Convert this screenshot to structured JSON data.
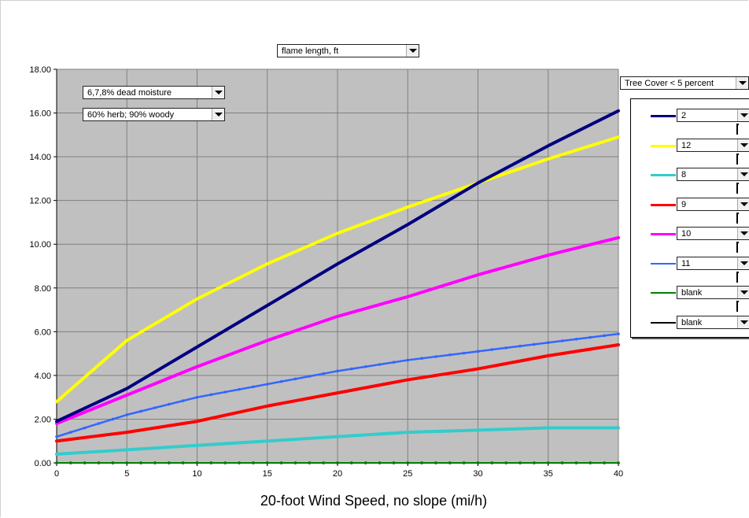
{
  "controls": {
    "output_select": "flame length, ft",
    "moisture_select": "6,7,8% dead moisture",
    "live_select": "60% herb; 90% woody",
    "cover_select": "Tree Cover < 5 percent"
  },
  "colors": {
    "plot_bg": "#c0c0c0",
    "grid": "#808080"
  },
  "chart_data": {
    "type": "line",
    "xlabel": "20-foot Wind Speed, no slope (mi/h)",
    "ylabel": "",
    "xlim": [
      0,
      40
    ],
    "ylim": [
      0,
      18
    ],
    "x_ticks": [
      "0",
      "5",
      "10",
      "15",
      "20",
      "25",
      "30",
      "35",
      "40"
    ],
    "y_ticks": [
      "0.00",
      "2.00",
      "4.00",
      "6.00",
      "8.00",
      "10.00",
      "12.00",
      "14.00",
      "16.00",
      "18.00"
    ],
    "grid": true,
    "legend_position": "right",
    "x": [
      0,
      5,
      10,
      15,
      20,
      25,
      30,
      35,
      40
    ],
    "series": [
      {
        "name": "2",
        "color": "#000080",
        "markers": false,
        "values": [
          1.9,
          3.4,
          5.3,
          7.2,
          9.1,
          10.9,
          12.8,
          14.5,
          16.1
        ]
      },
      {
        "name": "12",
        "color": "#ffff00",
        "markers": false,
        "values": [
          2.8,
          5.6,
          7.5,
          9.1,
          10.5,
          11.7,
          12.8,
          13.9,
          14.9
        ]
      },
      {
        "name": "8",
        "color": "#33cccc",
        "markers": false,
        "values": [
          0.4,
          0.6,
          0.8,
          1.0,
          1.2,
          1.4,
          1.5,
          1.6,
          1.6
        ]
      },
      {
        "name": "9",
        "color": "#ff0000",
        "markers": false,
        "values": [
          1.0,
          1.4,
          1.9,
          2.6,
          3.2,
          3.8,
          4.3,
          4.9,
          5.4
        ]
      },
      {
        "name": "10",
        "color": "#ff00ff",
        "markers": false,
        "values": [
          1.8,
          3.1,
          4.4,
          5.6,
          6.7,
          7.6,
          8.6,
          9.5,
          10.3
        ]
      },
      {
        "name": "11",
        "color": "#3366ff",
        "markers": true,
        "values": [
          1.2,
          2.2,
          3.0,
          3.6,
          4.2,
          4.7,
          5.1,
          5.5,
          5.9
        ]
      },
      {
        "name": "blank",
        "color": "#008000",
        "markers": true,
        "values": [
          0,
          0,
          0,
          0,
          0,
          0,
          0,
          0,
          0
        ]
      },
      {
        "name": "blank",
        "color": "#000000",
        "markers": true,
        "values": [
          0,
          0,
          0,
          0,
          0,
          0,
          0,
          0,
          0
        ]
      }
    ]
  }
}
